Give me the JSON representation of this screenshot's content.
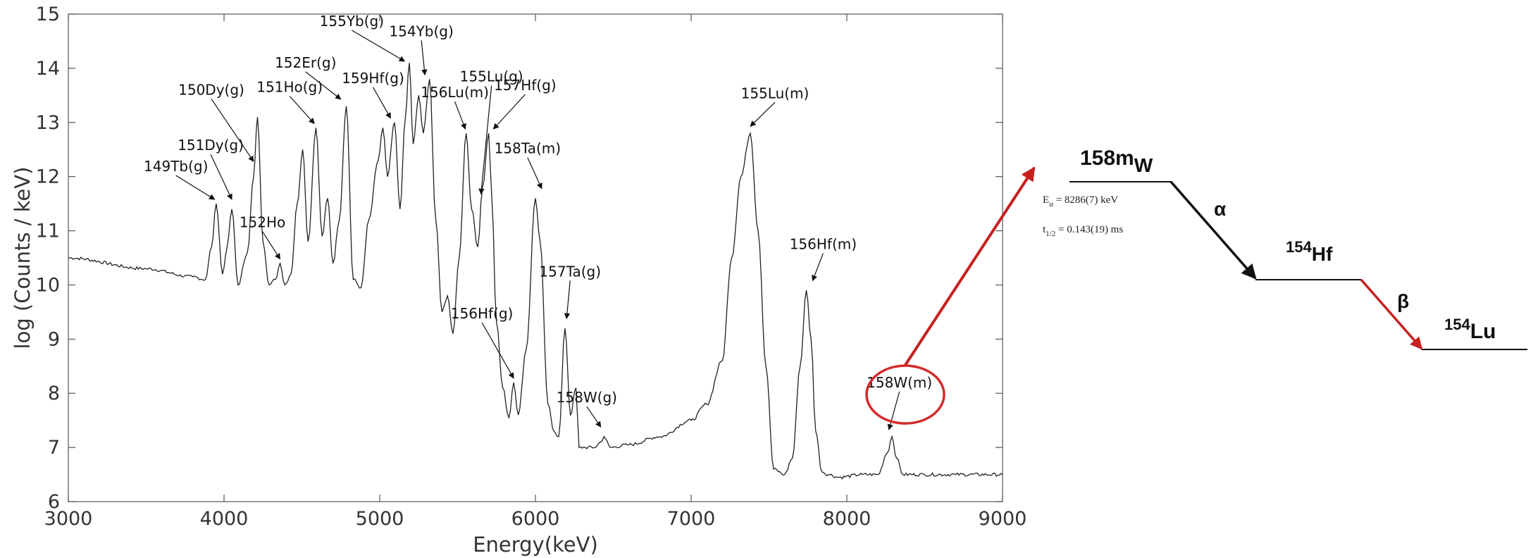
{
  "chart_data": {
    "type": "line",
    "xlabel": "Energy(keV)",
    "ylabel": "log (Counts / keV)",
    "xlim": [
      3000,
      9000
    ],
    "ylim": [
      6,
      15
    ],
    "xticks": [
      3000,
      4000,
      5000,
      6000,
      7000,
      8000,
      9000
    ],
    "yticks": [
      6,
      7,
      8,
      9,
      10,
      11,
      12,
      13,
      14,
      15
    ],
    "grid": false,
    "series": [
      {
        "x": [
          3000,
          3500,
          3800,
          3880,
          3920,
          3950,
          3990,
          4020,
          4050,
          4090,
          4150,
          4190,
          4215,
          4250,
          4290,
          4330,
          4360,
          4390,
          4430,
          4470,
          4505,
          4540,
          4590,
          4630,
          4665,
          4700,
          4740,
          4785,
          4830,
          4880,
          4930,
          4990,
          5020,
          5050,
          5095,
          5130,
          5165,
          5190,
          5215,
          5250,
          5280,
          5320,
          5360,
          5400,
          5435,
          5470,
          5510,
          5555,
          5590,
          5630,
          5660,
          5700,
          5720,
          5750,
          5790,
          5830,
          5860,
          5890,
          5940,
          6000,
          6030,
          6080,
          6120,
          6150,
          6190,
          6225,
          6260,
          6280,
          6320,
          6380,
          6420,
          6440,
          6480,
          6600,
          6800,
          7000,
          7100,
          7200,
          7260,
          7320,
          7380,
          7430,
          7480,
          7530,
          7600,
          7650,
          7700,
          7740,
          7770,
          7800,
          7840,
          7880,
          7950,
          8100,
          8200,
          8260,
          8290,
          8320,
          8360,
          8500,
          8700,
          9000
        ],
        "values": [
          10.5,
          10.3,
          10.15,
          10.1,
          10.7,
          11.5,
          10.2,
          10.7,
          11.4,
          10.0,
          10.6,
          12.0,
          13.1,
          10.8,
          10.0,
          10.1,
          10.4,
          10.0,
          10.2,
          11.5,
          12.5,
          10.8,
          12.9,
          10.9,
          11.6,
          10.4,
          11.2,
          13.3,
          10.1,
          9.95,
          11.2,
          12.3,
          12.9,
          12.0,
          13.0,
          11.4,
          13.1,
          14.1,
          12.6,
          13.5,
          12.8,
          13.8,
          11.2,
          9.5,
          9.8,
          9.1,
          10.5,
          12.8,
          11.4,
          10.7,
          11.8,
          12.8,
          11.6,
          9.3,
          8.1,
          7.55,
          8.2,
          7.6,
          8.8,
          11.6,
          10.8,
          7.8,
          7.3,
          7.2,
          9.2,
          7.6,
          8.1,
          7.0,
          7.0,
          7.0,
          7.1,
          7.2,
          7.0,
          7.05,
          7.2,
          7.5,
          7.8,
          8.6,
          10.5,
          12.0,
          12.8,
          11.0,
          8.5,
          6.6,
          6.5,
          6.8,
          8.5,
          9.9,
          9.0,
          7.3,
          6.55,
          6.5,
          6.45,
          6.5,
          6.5,
          6.9,
          7.2,
          6.8,
          6.5,
          6.5,
          6.5,
          6.5
        ]
      }
    ],
    "annotations": [
      {
        "label": "149Tb(g)",
        "x": 3940,
        "y": 11.5
      },
      {
        "label": "151Dy(g)",
        "x": 4050,
        "y": 11.5
      },
      {
        "label": "150Dy(g)",
        "x": 4190,
        "y": 12.2
      },
      {
        "label": "152Ho",
        "x": 4360,
        "y": 10.4
      },
      {
        "label": "151Ho(g)",
        "x": 4580,
        "y": 12.9
      },
      {
        "label": "152Er(g)",
        "x": 4750,
        "y": 13.35
      },
      {
        "label": "159Hf(g)",
        "x": 5070,
        "y": 13.0
      },
      {
        "label": "155Yb(g)",
        "x": 5160,
        "y": 14.05
      },
      {
        "label": "154Yb(g)",
        "x": 5290,
        "y": 13.8
      },
      {
        "label": "156Lu(m)",
        "x": 5550,
        "y": 12.8
      },
      {
        "label": "155Lu(g)",
        "x": 5650,
        "y": 11.6
      },
      {
        "label": "157Hf(g)",
        "x": 5730,
        "y": 12.8
      },
      {
        "label": "158Ta(m)",
        "x": 6040,
        "y": 11.7
      },
      {
        "label": "156Hf(g)",
        "x": 5860,
        "y": 8.2
      },
      {
        "label": "157Ta(g)",
        "x": 6200,
        "y": 9.3
      },
      {
        "label": "158W(g)",
        "x": 6420,
        "y": 7.3
      },
      {
        "label": "155Lu(m)",
        "x": 7380,
        "y": 12.85
      },
      {
        "label": "156Hf(m)",
        "x": 7780,
        "y": 10.0
      },
      {
        "label": "158W(m)",
        "x": 8270,
        "y": 7.25
      }
    ]
  },
  "decay_scheme": {
    "parent": {
      "mass": "158m",
      "symbol": "W"
    },
    "energy_line": {
      "main": "E",
      "sub": "α",
      "value": " = 8286(7) keV"
    },
    "halflife_line": {
      "main": "t",
      "sub": "1/2",
      "value": " = 0.143(19) ms"
    },
    "alpha_symbol": "α",
    "daughter": {
      "mass": "154",
      "symbol": "Hf"
    },
    "beta_symbol": "β",
    "granddaughter": {
      "mass": "154",
      "symbol": "Lu"
    },
    "highlight_color": "#d42a2a"
  }
}
